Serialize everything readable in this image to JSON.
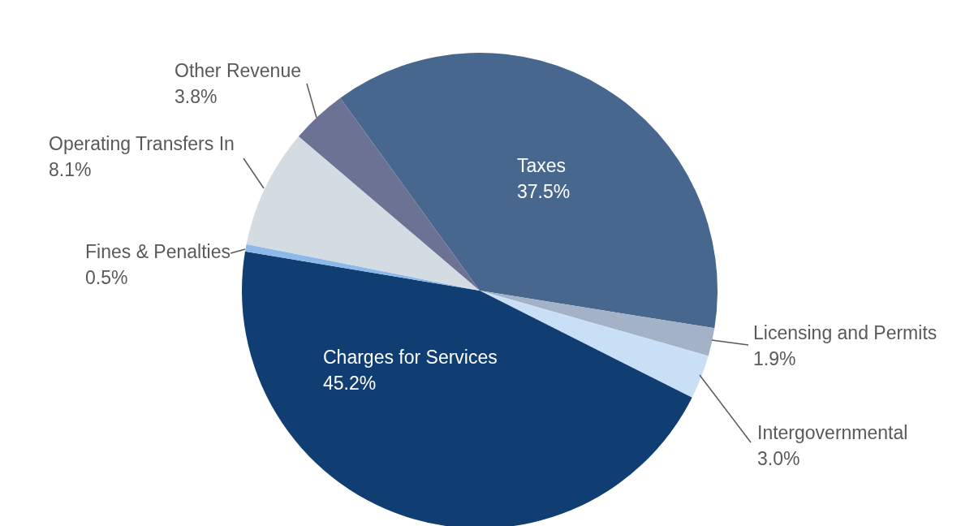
{
  "chart_data": {
    "type": "pie",
    "categories": [
      "Taxes",
      "Licensing and Permits",
      "Intergovernmental",
      "Charges for Services",
      "Fines & Penalties",
      "Operating Transfers In",
      "Other Revenue"
    ],
    "values": [
      37.5,
      1.9,
      3.0,
      45.2,
      0.5,
      8.1,
      3.8
    ],
    "value_labels": [
      "37.5%",
      "1.9%",
      "3.0%",
      "45.2%",
      "0.5%",
      "8.1%",
      "3.8%"
    ],
    "colors": [
      "#47678f",
      "#a3b2c6",
      "#c9dff5",
      "#103e73",
      "#8db8ea",
      "#d3dbe3",
      "#6c7294"
    ]
  }
}
